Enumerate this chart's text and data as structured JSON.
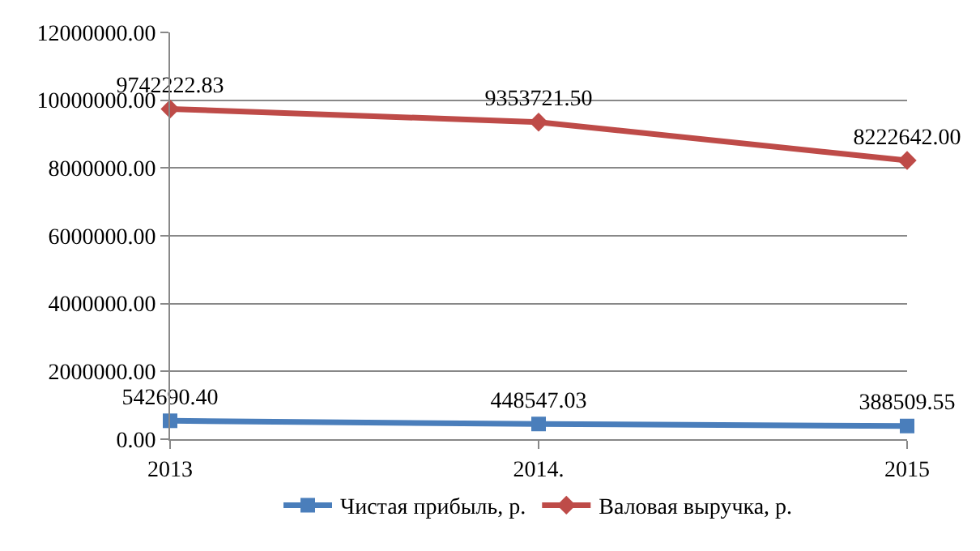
{
  "chart_data": {
    "type": "line",
    "categories": [
      "2013",
      "2014.",
      "2015"
    ],
    "series": [
      {
        "name": "Чистая прибыль, р.",
        "color": "#4a7ebb",
        "marker": "square",
        "values": [
          542690.4,
          448547.03,
          388509.55
        ],
        "value_labels": [
          "542690.40",
          "448547.03",
          "388509.55"
        ]
      },
      {
        "name": "Валовая выручка, р.",
        "color": "#be4b48",
        "marker": "diamond",
        "values": [
          9742222.83,
          9353721.5,
          8222642.0
        ],
        "value_labels": [
          "9742222.83",
          "9353721.50",
          "8222642.00"
        ]
      }
    ],
    "ylim": [
      0,
      12000000
    ],
    "yticks": [
      {
        "value": 0,
        "label": "0.00"
      },
      {
        "value": 2000000,
        "label": "2000000.00"
      },
      {
        "value": 4000000,
        "label": "4000000.00"
      },
      {
        "value": 6000000,
        "label": "6000000.00"
      },
      {
        "value": 8000000,
        "label": "8000000.00"
      },
      {
        "value": 10000000,
        "label": "10000000.00"
      },
      {
        "value": 12000000,
        "label": "12000000.00"
      }
    ],
    "grid": "y",
    "legend": "bottom",
    "line_style": "solid"
  }
}
